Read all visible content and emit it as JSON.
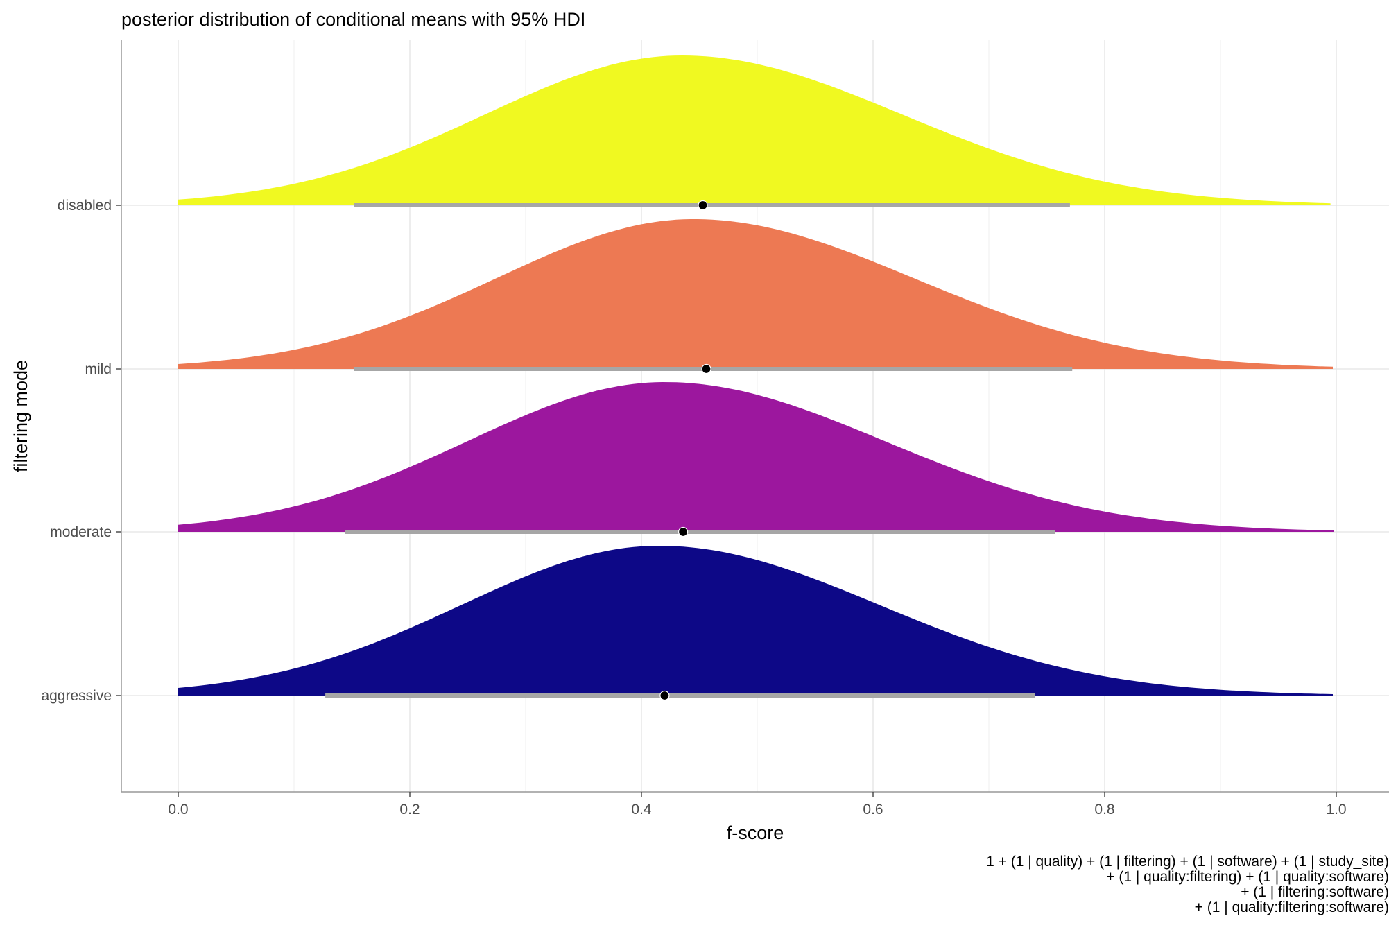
{
  "chart_data": {
    "type": "ridgeline",
    "title": "posterior distribution of conditional means with 95% HDI",
    "xlabel": "f-score",
    "ylabel": "filtering mode",
    "xlim": [
      -0.05,
      1.05
    ],
    "x_ticks": [
      0.0,
      0.2,
      0.4,
      0.6,
      0.8,
      1.0
    ],
    "x_tick_labels": [
      "0.0",
      "0.2",
      "0.4",
      "0.6",
      "0.8",
      "1.0"
    ],
    "grid": true,
    "interval_color": "#a6a6a6",
    "point_color": "#000000",
    "caption_lines": [
      "1 + (1 | quality) + (1 | filtering) + (1 | software) + (1 | study_site)",
      "+ (1 | quality:filtering) + (1 | quality:software)",
      "+ (1 | filtering:software)",
      "+ (1 | quality:filtering:software)"
    ],
    "series": [
      {
        "name": "disabled",
        "color": "#f0f921",
        "point": 0.453,
        "hdi": [
          0.152,
          0.77
        ],
        "density_mode": 0.435,
        "density_min": 0.0,
        "density_max": 0.995
      },
      {
        "name": "mild",
        "color": "#ed7953",
        "point": 0.456,
        "hdi": [
          0.152,
          0.772
        ],
        "density_mode": 0.445,
        "density_min": 0.0,
        "density_max": 0.997
      },
      {
        "name": "moderate",
        "color": "#9c179e",
        "point": 0.436,
        "hdi": [
          0.144,
          0.757
        ],
        "density_mode": 0.42,
        "density_min": 0.0,
        "density_max": 0.998
      },
      {
        "name": "aggressive",
        "color": "#0d0887",
        "point": 0.42,
        "hdi": [
          0.127,
          0.74
        ],
        "density_mode": 0.415,
        "density_min": 0.0,
        "density_max": 0.997
      }
    ]
  }
}
